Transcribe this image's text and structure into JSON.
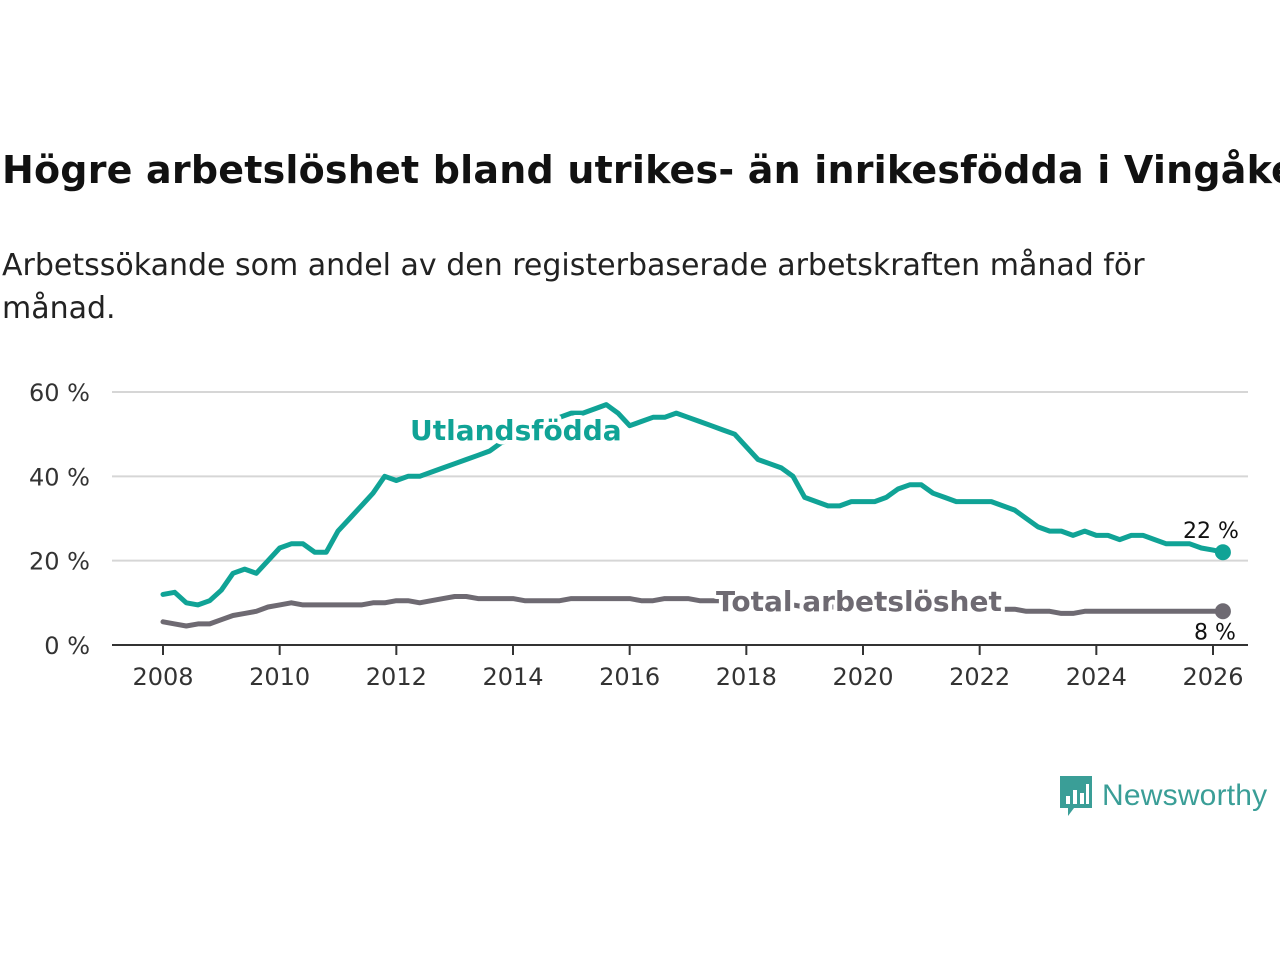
{
  "colors": {
    "foreign_born": "#10a396",
    "total": "#6e6a72",
    "grid": "#d6d6d6",
    "axis": "#333333",
    "brand": "#3a9e97"
  },
  "logo": {
    "text": "Newsworthy",
    "icon": "newsworthy-chart-icon"
  },
  "chart_data": {
    "type": "line",
    "title": "Högre arbetslöshet bland utrikes- än inrikesfödda i Vingåker",
    "subtitle": "Arbetssökande som andel av den registerbaserade arbetskraften månad för månad.",
    "xlabel": "",
    "ylabel": "",
    "ylim": [
      0,
      60
    ],
    "xlim": [
      2007.5,
      2027.5
    ],
    "y_ticks": [
      0,
      20,
      40,
      60
    ],
    "y_tick_labels": [
      "0 %",
      "20 %",
      "40 %",
      "60 %"
    ],
    "x_ticks": [
      2008,
      2010,
      2012,
      2014,
      2016,
      2018,
      2020,
      2022,
      2024,
      2026
    ],
    "x_tick_labels": [
      "2008",
      "2010",
      "2012",
      "2014",
      "2016",
      "2018",
      "2020",
      "2022",
      "2024",
      "2026"
    ],
    "grid": true,
    "series": [
      {
        "name": "Utlandsfödda",
        "end_label": "22 %",
        "x": [
          2008.0,
          2008.2,
          2008.4,
          2008.6,
          2008.8,
          2009.0,
          2009.2,
          2009.4,
          2009.6,
          2009.8,
          2010.0,
          2010.2,
          2010.4,
          2010.6,
          2010.8,
          2011.0,
          2011.2,
          2011.4,
          2011.6,
          2011.8,
          2012.0,
          2012.2,
          2012.4,
          2012.6,
          2012.8,
          2013.0,
          2013.2,
          2013.4,
          2013.6,
          2013.8,
          2014.0,
          2014.2,
          2014.4,
          2014.6,
          2014.8,
          2015.0,
          2015.2,
          2015.4,
          2015.6,
          2015.8,
          2016.0,
          2016.2,
          2016.4,
          2016.6,
          2016.8,
          2017.0,
          2017.2,
          2017.4,
          2017.6,
          2017.8,
          2018.0,
          2018.2,
          2018.4,
          2018.6,
          2018.8,
          2019.0,
          2019.2,
          2019.4,
          2019.6,
          2019.8,
          2020.0,
          2020.2,
          2020.4,
          2020.6,
          2020.8,
          2021.0,
          2021.2,
          2021.4,
          2021.6,
          2021.8,
          2022.0,
          2022.2,
          2022.4,
          2022.6,
          2022.8,
          2023.0,
          2023.2,
          2023.4,
          2023.6,
          2023.8,
          2024.0,
          2024.2,
          2024.4,
          2024.6,
          2024.8,
          2025.0,
          2025.2,
          2025.4,
          2025.6,
          2025.8,
          2026.0,
          2026.17
        ],
        "y": [
          12,
          12.5,
          10,
          9.5,
          10.5,
          13,
          17,
          18,
          17,
          20,
          23,
          24,
          24,
          22,
          22,
          27,
          30,
          33,
          36,
          40,
          39,
          40,
          40,
          41,
          42,
          43,
          44,
          45,
          46,
          48,
          49,
          50,
          51,
          53,
          54,
          55,
          55,
          56,
          57,
          55,
          52,
          53,
          54,
          54,
          55,
          54,
          53,
          52,
          51,
          50,
          47,
          44,
          43,
          42,
          40,
          35,
          34,
          33,
          33,
          34,
          34,
          34,
          35,
          37,
          38,
          38,
          36,
          35,
          34,
          34,
          34,
          34,
          33,
          32,
          30,
          28,
          27,
          27,
          26,
          27,
          26,
          26,
          25,
          26,
          26,
          25,
          24,
          24,
          24,
          23,
          22.5,
          22
        ]
      },
      {
        "name": "Total arbetslöshet",
        "end_label": "8 %",
        "x": [
          2008.0,
          2008.2,
          2008.4,
          2008.6,
          2008.8,
          2009.0,
          2009.2,
          2009.4,
          2009.6,
          2009.8,
          2010.0,
          2010.2,
          2010.4,
          2010.6,
          2010.8,
          2011.0,
          2011.2,
          2011.4,
          2011.6,
          2011.8,
          2012.0,
          2012.2,
          2012.4,
          2012.6,
          2012.8,
          2013.0,
          2013.2,
          2013.4,
          2013.6,
          2013.8,
          2014.0,
          2014.2,
          2014.4,
          2014.6,
          2014.8,
          2015.0,
          2015.2,
          2015.4,
          2015.6,
          2015.8,
          2016.0,
          2016.2,
          2016.4,
          2016.6,
          2016.8,
          2017.0,
          2017.2,
          2017.4,
          2017.6,
          2017.8,
          2018.0,
          2018.2,
          2018.4,
          2018.6,
          2018.8,
          2019.0,
          2019.2,
          2019.4,
          2019.6,
          2019.8,
          2020.0,
          2020.2,
          2020.4,
          2020.6,
          2020.8,
          2021.0,
          2021.2,
          2021.4,
          2021.6,
          2021.8,
          2022.0,
          2022.2,
          2022.4,
          2022.6,
          2022.8,
          2023.0,
          2023.2,
          2023.4,
          2023.6,
          2023.8,
          2024.0,
          2024.2,
          2024.4,
          2024.6,
          2024.8,
          2025.0,
          2025.2,
          2025.4,
          2025.6,
          2025.8,
          2026.0,
          2026.17
        ],
        "y": [
          5.5,
          5,
          4.5,
          5,
          5,
          6,
          7,
          7.5,
          8,
          9,
          9.5,
          10,
          9.5,
          9.5,
          9.5,
          9.5,
          9.5,
          9.5,
          10,
          10,
          10.5,
          10.5,
          10,
          10.5,
          11,
          11.5,
          11.5,
          11,
          11,
          11,
          11,
          10.5,
          10.5,
          10.5,
          10.5,
          11,
          11,
          11,
          11,
          11,
          11,
          10.5,
          10.5,
          11,
          11,
          11,
          10.5,
          10.5,
          10.5,
          10,
          10,
          10,
          10,
          9.5,
          9.5,
          9,
          9,
          9,
          9,
          9,
          9,
          9,
          9,
          9,
          9,
          9,
          8.5,
          8.5,
          8.5,
          8.5,
          8.5,
          8.5,
          8.5,
          8.5,
          8,
          8,
          8,
          7.5,
          7.5,
          8,
          8,
          8,
          8,
          8,
          8,
          8,
          8,
          8,
          8,
          8,
          8,
          8
        ]
      }
    ]
  }
}
